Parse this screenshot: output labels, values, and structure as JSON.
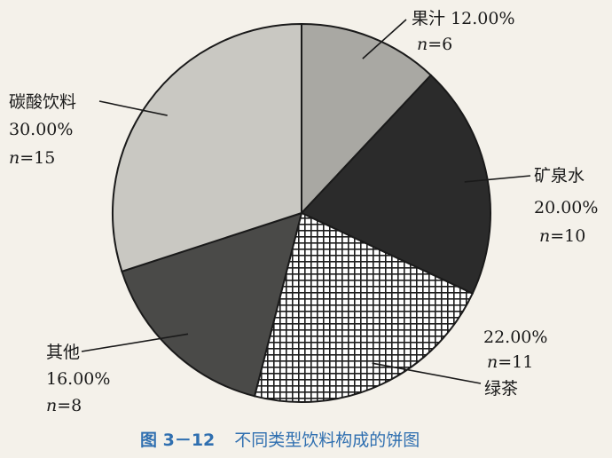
{
  "caption": {
    "figure_label": "图 3－12",
    "title": "不同类型饮料构成的饼图"
  },
  "chart_data": {
    "type": "pie",
    "start_angle_deg": 0,
    "direction": "clockwise",
    "slices": [
      {
        "name": "果汁",
        "percent_label": "12.00%",
        "value": 12.0,
        "n": 6,
        "n_label": "n=6",
        "color": "#a9a8a3",
        "pattern": "solid"
      },
      {
        "name": "矿泉水",
        "percent_label": "20.00%",
        "value": 20.0,
        "n": 10,
        "n_label": "n=10",
        "color": "#2b2b2b",
        "pattern": "solid"
      },
      {
        "name": "绿茶",
        "percent_label": "22.00%",
        "value": 22.0,
        "n": 11,
        "n_label": "n=11",
        "color": "#222222",
        "pattern": "crosshatch"
      },
      {
        "name": "其他",
        "percent_label": "16.00%",
        "value": 16.0,
        "n": 8,
        "n_label": "n=8",
        "color": "#4a4a48",
        "pattern": "solid"
      },
      {
        "name": "碳酸饮料",
        "percent_label": "30.00%",
        "value": 30.0,
        "n": 15,
        "n_label": "n=15",
        "color": "#c9c8c2",
        "pattern": "solid"
      }
    ]
  }
}
